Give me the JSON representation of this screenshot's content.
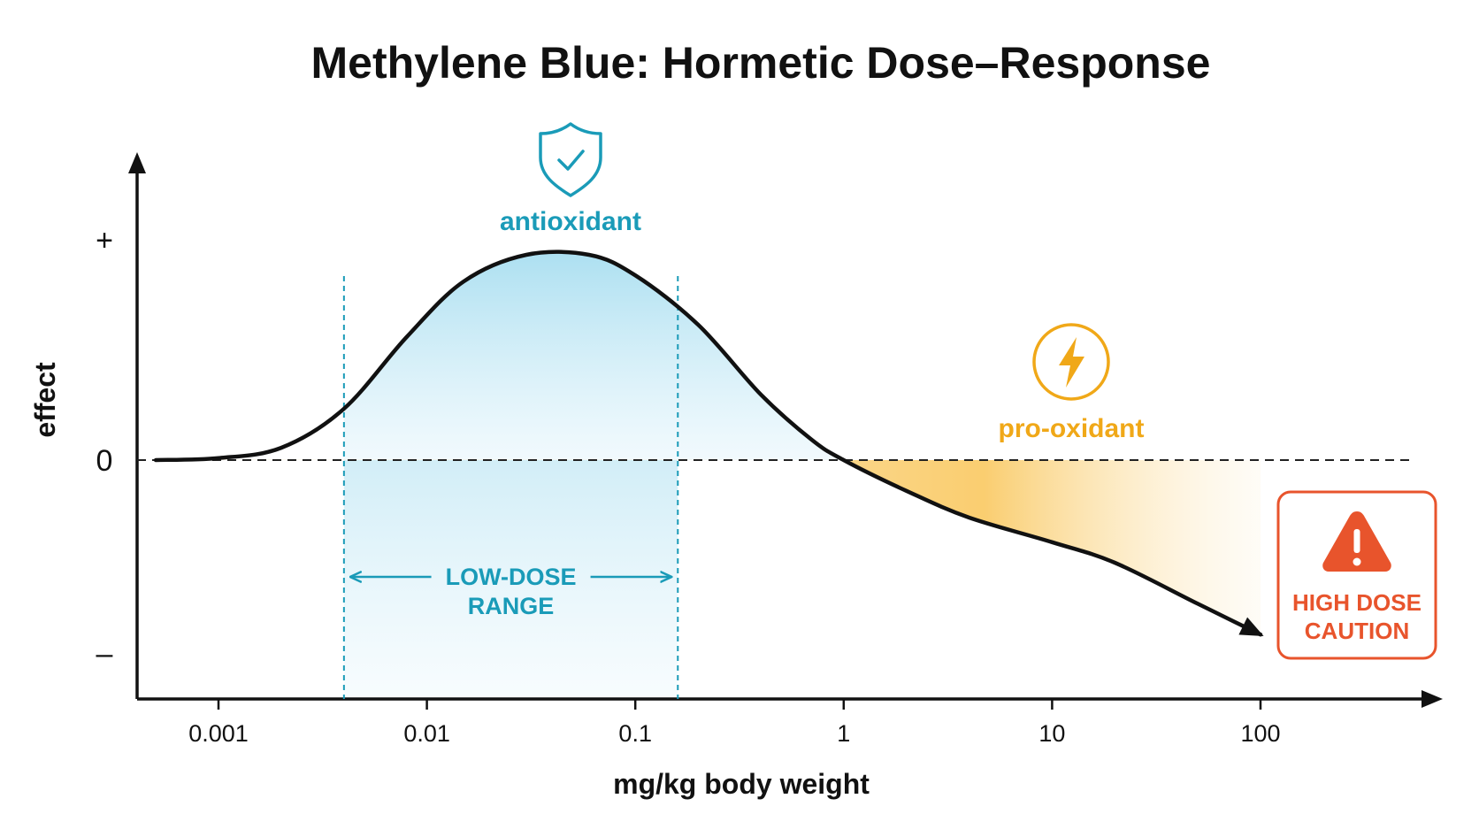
{
  "chart_data": {
    "type": "line",
    "title": "Methylene Blue: Hormetic Dose–Response",
    "xlabel": "mg/kg body weight",
    "ylabel": "effect",
    "xscale": "log",
    "xlim": [
      0.0005,
      300
    ],
    "x_ticks": [
      0.001,
      0.01,
      0.1,
      1,
      10,
      100
    ],
    "x_tick_labels": [
      "0.001",
      "0.01",
      "0.1",
      "1",
      "10",
      "100"
    ],
    "y_tick_labels": {
      "plus": "+",
      "zero": "0",
      "minus": "–"
    },
    "grid": false,
    "legend": "none",
    "zero_line": "dashed",
    "series": [
      {
        "x": [
          0.0005,
          0.001,
          0.002,
          0.004,
          0.008,
          0.015,
          0.03,
          0.06,
          0.1,
          0.2,
          0.4,
          0.7,
          1.0,
          2.0,
          4.0,
          10,
          20,
          50,
          100
        ],
        "y": [
          0.0,
          0.01,
          0.06,
          0.25,
          0.6,
          0.87,
          1.0,
          1.0,
          0.9,
          0.66,
          0.32,
          0.1,
          0.0,
          -0.15,
          -0.28,
          -0.4,
          -0.5,
          -0.7,
          -0.85
        ]
      }
    ],
    "annotations": {
      "antioxidant": "antioxidant",
      "pro_oxidant": "pro-oxidant",
      "low_dose_range": {
        "line1": "LOW-DOSE",
        "line2": "RANGE",
        "x_from": 0.004,
        "x_to": 0.16
      },
      "high_dose_caution": {
        "line1": "HIGH DOSE",
        "line2": "CAUTION"
      }
    },
    "colors": {
      "curve": "#111111",
      "antioxidant": "#1a9bb8",
      "pro_oxidant": "#f0a818",
      "caution": "#e8542c"
    }
  }
}
